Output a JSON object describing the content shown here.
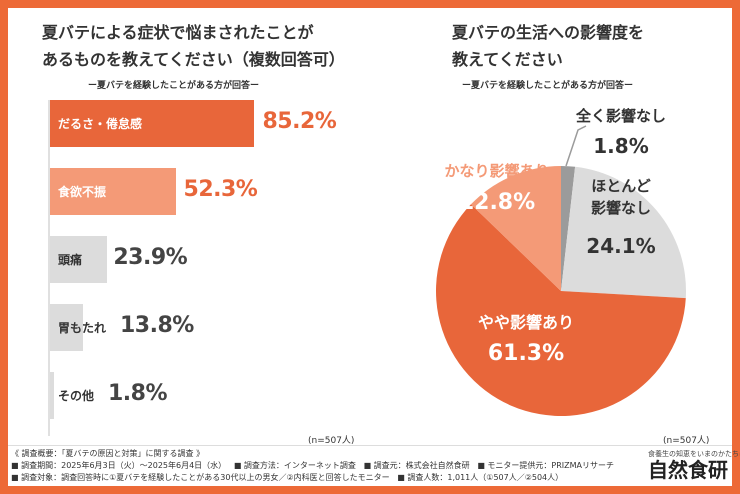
{
  "left_chart": {
    "title_line1": "夏バテによる症状で悩まされたことが",
    "title_line2": "あるものを教えてください（複数回答可）",
    "subtitle": "ー夏バテを経験したことがある方が回答ー",
    "n_note": "(n=507人)"
  },
  "right_chart": {
    "title_line1": "夏バテの生活への影響度を",
    "title_line2": "教えてください",
    "subtitle": "ー夏バテを経験したことがある方が回答ー",
    "n_note": "(n=507人)"
  },
  "chart_data": [
    {
      "type": "bar",
      "orientation": "horizontal",
      "categories": [
        "だるさ・倦怠感",
        "食欲不振",
        "頭痛",
        "胃もたれ",
        "その他"
      ],
      "values": [
        85.2,
        52.3,
        23.9,
        13.8,
        1.8
      ],
      "value_labels": [
        "85.2%",
        "52.3%",
        "23.9%",
        "13.8%",
        "1.8%"
      ],
      "colors": [
        "#e8663a",
        "#f49a77",
        "#dcdcdc",
        "#dcdcdc",
        "#dcdcdc"
      ],
      "xlim": [
        0,
        100
      ]
    },
    {
      "type": "pie",
      "categories": [
        "全く影響なし",
        "ほとんど影響なし",
        "やや影響あり",
        "かなり影響あり"
      ],
      "values": [
        1.8,
        24.1,
        61.3,
        12.8
      ],
      "value_labels": [
        "1.8%",
        "24.1%",
        "61.3%",
        "12.8%"
      ],
      "label_lines": [
        [
          "全く影響なし"
        ],
        [
          "ほとんど",
          "影響なし"
        ],
        [
          "やや影響あり"
        ],
        [
          "かなり影響あり"
        ]
      ],
      "colors": [
        "#9b9b9b",
        "#dcdcdc",
        "#e8663a",
        "#f49a77"
      ]
    }
  ],
  "survey": {
    "heading": "《 調査概要：「夏バテの原因と対策」に関する調査 》",
    "line1_items": [
      "■ 調査期間：2025年6月3日（火）～2025年6月4日（水）",
      "■ 調査方法：インターネット調査",
      "■ 調査元：株式会社自然食研",
      "■ モニター提供元：PRIZMAリサーチ"
    ],
    "line2_items": [
      "■ 調査対象：調査回答時に①夏バテを経験したことがある30代以上の男女／②内科医と回答したモニター",
      "■ 調査人数：1,011人（①507人／②504人）"
    ]
  },
  "brand": {
    "tagline": "食養生の知恵をいまのかたちに",
    "name": "自然食研"
  }
}
